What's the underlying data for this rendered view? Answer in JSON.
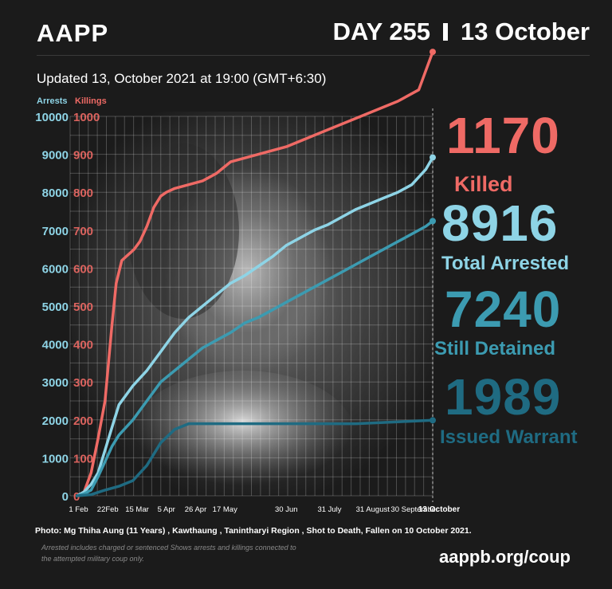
{
  "header": {
    "brand": "AAPP",
    "day": "DAY 255",
    "date": "13 October",
    "updated": "Updated 13, October 2021 at 19:00 (GMT+6:30)"
  },
  "stats": {
    "killed_num": "1170",
    "killed_label": "Killed",
    "arrested_num": "8916",
    "arrested_label": "Total Arrested",
    "detained_num": "7240",
    "detained_label": "Still Detained",
    "warrant_num": "1989",
    "warrant_label": "Issued Warrant"
  },
  "footer": {
    "photo": "Photo:  Mg Thiha Aung  (11 Years)  , Kawthaung ,  Tanintharyi Region , Shot to Death, Fallen on 10 October 2021.",
    "note": "Arrested includes charged or sentenced Shows arrests and killings connected to the attempted military coup only.",
    "url": "aappb.org/coup"
  },
  "colors": {
    "killings": "#ef6a65",
    "arrests": "#8ed4e6",
    "detained": "#3c9bb1",
    "warrant": "#1f6b82",
    "background": "#1b1b1b"
  },
  "chart_data": {
    "type": "line",
    "left_axis_label": "Arrests",
    "right_axis_label": "Killings",
    "left_ticks": [
      "10000",
      "9000",
      "8000",
      "7000",
      "6000",
      "5000",
      "4000",
      "3000",
      "2000",
      "1000",
      "0"
    ],
    "right_ticks": [
      "1000",
      "900",
      "800",
      "700",
      "600",
      "500",
      "400",
      "300",
      "200",
      "100",
      "0"
    ],
    "x_ticks": [
      "1 Feb",
      "22Feb",
      "15 Mar",
      "5 Apr",
      "26 Apr",
      "17 May",
      "30 Jun",
      "31 July",
      "31 August",
      "30 September",
      "13 October"
    ],
    "x_tick_days": [
      1,
      22,
      43,
      64,
      85,
      106,
      150,
      181,
      212,
      242,
      255
    ],
    "xlim": [
      -5,
      255
    ],
    "arrests_ylim": [
      0,
      10000
    ],
    "killings_ylim": [
      0,
      1000
    ],
    "series": [
      {
        "key": "killings",
        "axis": "right",
        "x": [
          0,
          5,
          10,
          15,
          20,
          25,
          28,
          32,
          35,
          38,
          41,
          45,
          50,
          55,
          60,
          64,
          70,
          80,
          90,
          100,
          110,
          130,
          150,
          170,
          190,
          210,
          230,
          245,
          255
        ],
        "y": [
          0,
          10,
          60,
          150,
          250,
          450,
          560,
          620,
          630,
          640,
          650,
          670,
          710,
          760,
          790,
          800,
          810,
          820,
          830,
          850,
          880,
          900,
          920,
          950,
          980,
          1010,
          1040,
          1070,
          1170
        ]
      },
      {
        "key": "arrests",
        "x": [
          0,
          5,
          10,
          15,
          20,
          25,
          30,
          40,
          50,
          60,
          70,
          80,
          90,
          100,
          110,
          120,
          130,
          140,
          150,
          160,
          170,
          180,
          190,
          200,
          210,
          220,
          230,
          240,
          250,
          255
        ],
        "y": [
          0,
          100,
          300,
          600,
          1200,
          1800,
          2400,
          2900,
          3300,
          3800,
          4300,
          4700,
          5000,
          5300,
          5600,
          5800,
          6050,
          6300,
          6600,
          6800,
          7000,
          7150,
          7350,
          7550,
          7700,
          7850,
          8000,
          8200,
          8600,
          8916
        ]
      },
      {
        "key": "detained",
        "x": [
          0,
          5,
          10,
          15,
          20,
          25,
          30,
          40,
          50,
          60,
          70,
          80,
          90,
          100,
          110,
          120,
          130,
          140,
          150,
          160,
          170,
          180,
          190,
          200,
          210,
          220,
          230,
          240,
          250,
          255
        ],
        "y": [
          0,
          50,
          150,
          500,
          900,
          1300,
          1600,
          2000,
          2500,
          3000,
          3300,
          3600,
          3900,
          4100,
          4300,
          4550,
          4700,
          4900,
          5100,
          5300,
          5500,
          5700,
          5900,
          6100,
          6300,
          6500,
          6700,
          6900,
          7100,
          7240
        ]
      },
      {
        "key": "warrant",
        "x": [
          0,
          10,
          20,
          30,
          40,
          50,
          60,
          70,
          80,
          100,
          150,
          200,
          230,
          255
        ],
        "y": [
          0,
          30,
          150,
          250,
          400,
          800,
          1400,
          1750,
          1900,
          1900,
          1900,
          1900,
          1950,
          1989
        ]
      }
    ]
  }
}
